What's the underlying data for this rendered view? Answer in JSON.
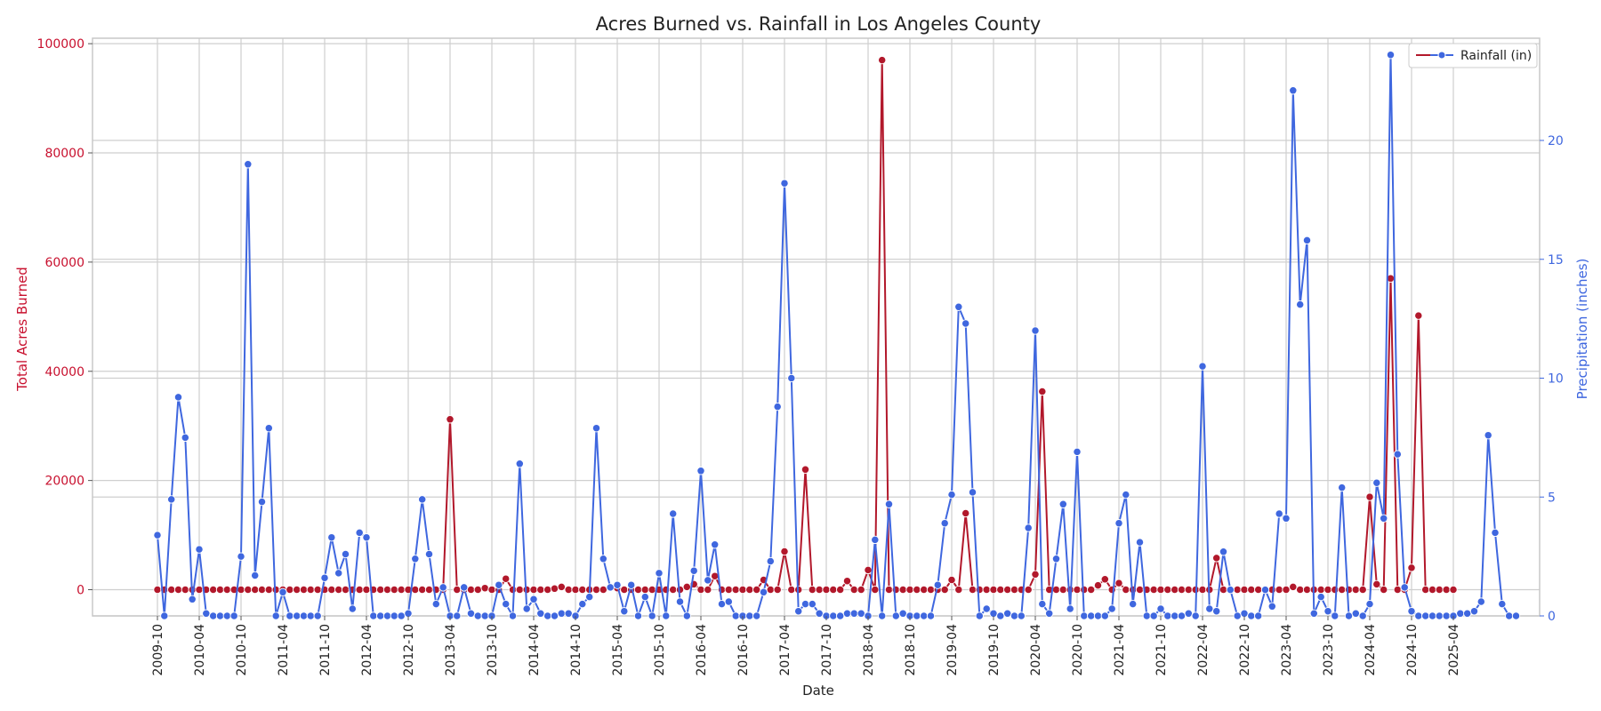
{
  "chart_data": {
    "type": "line",
    "title": "Acres Burned vs. Rainfall in Los Angeles County",
    "xlabel": "Date",
    "ylabel_left": "Total Acres Burned",
    "ylabel_right": "Precipitation (inches)",
    "colors": {
      "acres": "#b2182b",
      "rain": "#3f67df",
      "left_axis_text": "#c8102e",
      "right_axis_text": "#3f67df"
    },
    "grid": true,
    "legend_position": "top-right",
    "legend_label": "Rainfall (in)",
    "x_tick_labels": [
      "2009-10",
      "2010-04",
      "2010-10",
      "2011-04",
      "2011-10",
      "2012-04",
      "2012-10",
      "2013-04",
      "2013-10",
      "2014-04",
      "2014-10",
      "2015-04",
      "2015-10",
      "2016-04",
      "2016-10",
      "2017-04",
      "2017-10",
      "2018-04",
      "2018-10",
      "2019-04",
      "2019-10",
      "2020-04",
      "2020-10",
      "2021-04",
      "2021-10",
      "2022-04",
      "2022-10",
      "2023-04",
      "2023-10",
      "2024-04",
      "2024-10",
      "2025-04"
    ],
    "y_left_ticks": [
      0,
      20000,
      40000,
      60000,
      80000,
      100000
    ],
    "y_left_range": [
      -4800,
      101000
    ],
    "y_right_ticks": [
      0,
      5,
      10,
      15,
      20
    ],
    "y_right_range": [
      0,
      24.3
    ],
    "start_month": "2009-10",
    "series": [
      {
        "name": "Acres Burned",
        "axis": "left",
        "values": [
          0,
          0,
          0,
          0,
          0,
          0,
          0,
          0,
          0,
          0,
          0,
          0,
          0,
          0,
          0,
          0,
          0,
          0,
          0,
          0,
          0,
          0,
          0,
          0,
          0,
          0,
          0,
          0,
          0,
          0,
          0,
          0,
          0,
          0,
          0,
          0,
          0,
          0,
          0,
          0,
          0,
          0,
          31200,
          0,
          0,
          0,
          0,
          300,
          0,
          0,
          2000,
          0,
          0,
          0,
          0,
          0,
          0,
          200,
          500,
          0,
          0,
          0,
          0,
          0,
          0,
          400,
          300,
          0,
          0,
          0,
          0,
          0,
          0,
          0,
          0,
          0,
          500,
          1000,
          0,
          0,
          2500,
          0,
          0,
          0,
          0,
          0,
          0,
          1800,
          0,
          0,
          7000,
          0,
          0,
          22000,
          0,
          0,
          0,
          0,
          0,
          1600,
          0,
          0,
          3600,
          0,
          97000,
          0,
          0,
          0,
          0,
          0,
          0,
          0,
          0,
          0,
          1800,
          0,
          14000,
          0,
          0,
          0,
          0,
          0,
          0,
          0,
          0,
          0,
          2800,
          36300,
          0,
          0,
          0,
          0,
          0,
          0,
          0,
          800,
          1900,
          0,
          1200,
          0,
          0,
          0,
          0,
          0,
          0,
          0,
          0,
          0,
          0,
          0,
          0,
          0,
          5800,
          0,
          0,
          0,
          0,
          0,
          0,
          0,
          0,
          0,
          0,
          500,
          0,
          0,
          0,
          0,
          0,
          0,
          0,
          0,
          0,
          0,
          17000,
          1000,
          0,
          57000,
          0,
          0,
          4000,
          50200,
          0,
          0,
          0,
          0,
          0
        ]
      },
      {
        "name": "Rainfall (in)",
        "axis": "right",
        "values": [
          3.4,
          0,
          4.9,
          9.2,
          7.5,
          0.7,
          2.8,
          0.1,
          0,
          0,
          0,
          0,
          2.5,
          19,
          1.7,
          4.8,
          7.9,
          0,
          1,
          0,
          0,
          0,
          0,
          0,
          1.6,
          3.3,
          1.8,
          2.6,
          0.3,
          3.5,
          3.3,
          0,
          0,
          0,
          0,
          0,
          0.1,
          2.4,
          4.9,
          2.6,
          0.5,
          1.2,
          0,
          0,
          1.2,
          0.1,
          0,
          0,
          0,
          1.3,
          0.5,
          0,
          6.4,
          0.3,
          0.7,
          0.1,
          0,
          0,
          0.1,
          0.1,
          0,
          0.5,
          0.8,
          7.9,
          2.4,
          1.2,
          1.3,
          0.2,
          1.3,
          0,
          0.8,
          0,
          1.8,
          0,
          4.3,
          0.6,
          0,
          1.9,
          6.1,
          1.5,
          3.0,
          0.5,
          0.6,
          0,
          0,
          0,
          0,
          1,
          2.3,
          8.8,
          18.2,
          10,
          0.2,
          0.5,
          0.5,
          0.1,
          0,
          0,
          0,
          0.1,
          0.1,
          0.1,
          0,
          3.2,
          0,
          4.7,
          0,
          0.1,
          0,
          0,
          0,
          0,
          1.3,
          3.9,
          5.1,
          13,
          12.3,
          5.2,
          0,
          0.3,
          0.1,
          0,
          0.1,
          0,
          0,
          3.7,
          12,
          0.5,
          0.1,
          2.4,
          4.7,
          0.3,
          6.9,
          0,
          0,
          0,
          0,
          0.3,
          3.9,
          5.1,
          0.5,
          3.1,
          0,
          0,
          0.3,
          0,
          0,
          0,
          0.1,
          0,
          10.5,
          0.3,
          0.2,
          2.7,
          1.1,
          0,
          0.1,
          0,
          0,
          1.1,
          0.4,
          4.3,
          4.1,
          22.1,
          13.1,
          15.8,
          0.1,
          0.8,
          0.2,
          0,
          5.4,
          0,
          0.1,
          0,
          0.5,
          5.6,
          4.1,
          23.6,
          6.8,
          1.2,
          0.2,
          0,
          0,
          0,
          0,
          0,
          0,
          0.1,
          0.1,
          0.2,
          0.6,
          7.6,
          3.5,
          0.5,
          0,
          0
        ]
      }
    ]
  }
}
